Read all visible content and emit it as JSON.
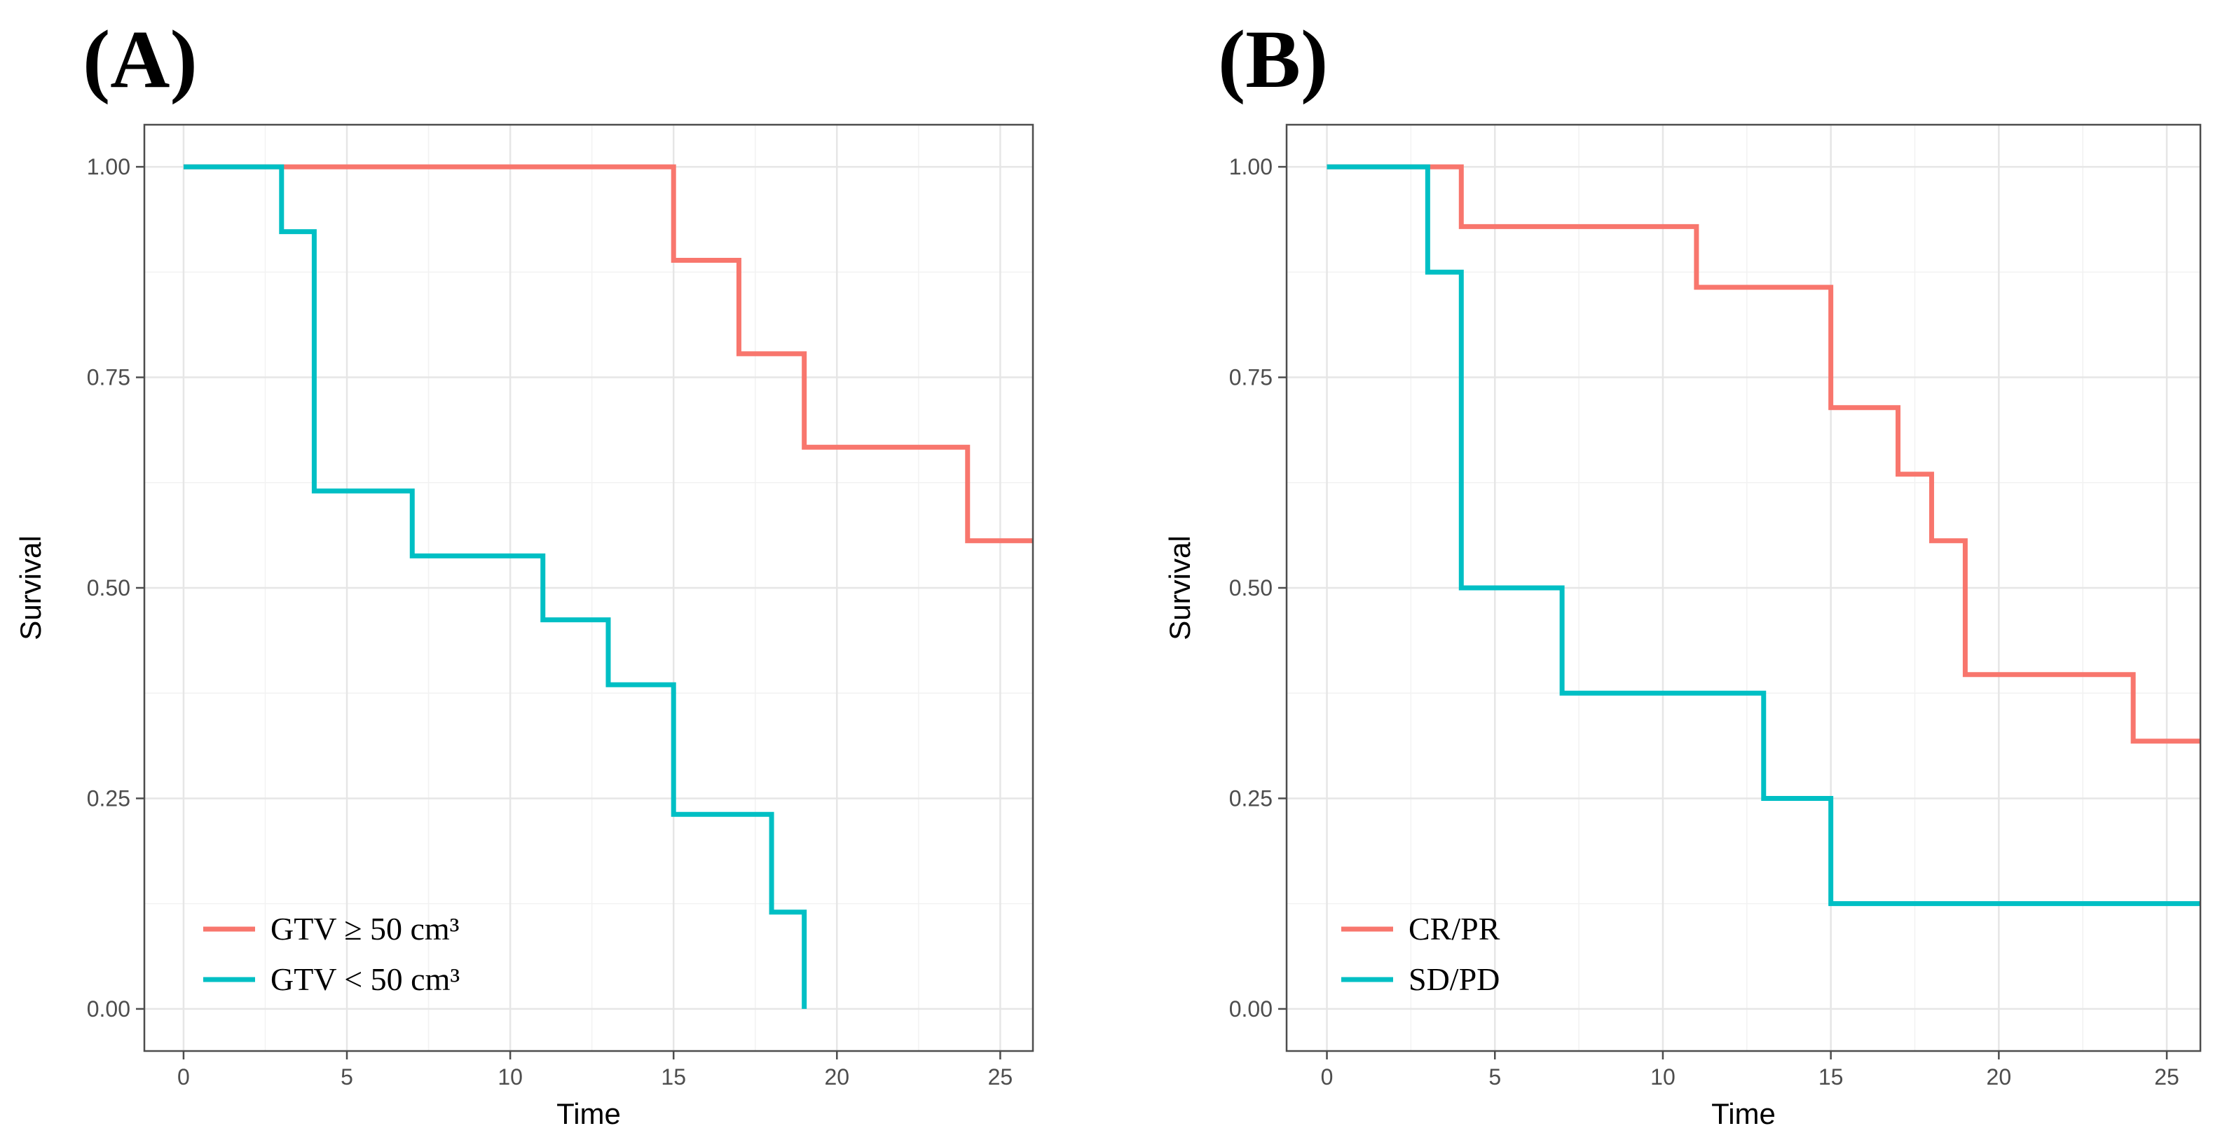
{
  "chart_data": [
    {
      "type": "line",
      "subtype": "kaplan-meier",
      "panel_label": "(A)",
      "xlabel": "Time",
      "ylabel": "Survival",
      "xlim": [
        -1.2,
        26
      ],
      "ylim": [
        -0.05,
        1.05
      ],
      "x_ticks": [
        0,
        5,
        10,
        15,
        20,
        25
      ],
      "x_tick_labels": [
        "0",
        "5",
        "10",
        "15",
        "20",
        "25"
      ],
      "y_ticks": [
        0,
        0.25,
        0.5,
        0.75,
        1
      ],
      "y_tick_labels": [
        "0.00",
        "0.25",
        "0.50",
        "0.75",
        "1.00"
      ],
      "grid": true,
      "legend_position": "bottom-left",
      "series": [
        {
          "name": "GTV ≥ 50 cm³",
          "color": "#f8766d",
          "steps": [
            [
              0,
              1.0
            ],
            [
              15,
              0.889
            ],
            [
              17,
              0.778
            ],
            [
              19,
              0.667
            ],
            [
              24,
              0.556
            ]
          ],
          "end_time": 26
        },
        {
          "name": "GTV < 50 cm³",
          "color": "#00bfc4",
          "steps": [
            [
              0,
              1.0
            ],
            [
              3,
              0.923
            ],
            [
              4,
              0.615
            ],
            [
              7,
              0.538
            ],
            [
              11,
              0.462
            ],
            [
              13,
              0.385
            ],
            [
              15,
              0.231
            ],
            [
              18,
              0.115
            ],
            [
              19,
              0.0
            ]
          ],
          "end_time": 19
        }
      ]
    },
    {
      "type": "line",
      "subtype": "kaplan-meier",
      "panel_label": "(B)",
      "xlabel": "Time",
      "ylabel": "Survival",
      "xlim": [
        -1.2,
        26
      ],
      "ylim": [
        -0.05,
        1.05
      ],
      "x_ticks": [
        0,
        5,
        10,
        15,
        20,
        25
      ],
      "x_tick_labels": [
        "0",
        "5",
        "10",
        "15",
        "20",
        "25"
      ],
      "y_ticks": [
        0,
        0.25,
        0.5,
        0.75,
        1
      ],
      "y_tick_labels": [
        "0.00",
        "0.25",
        "0.50",
        "0.75",
        "1.00"
      ],
      "grid": true,
      "legend_position": "bottom-left",
      "series": [
        {
          "name": "CR/PR",
          "color": "#f8766d",
          "steps": [
            [
              0,
              1.0
            ],
            [
              4,
              0.929
            ],
            [
              11,
              0.857
            ],
            [
              15,
              0.714
            ],
            [
              17,
              0.635
            ],
            [
              18,
              0.556
            ],
            [
              19,
              0.397
            ],
            [
              24,
              0.318
            ]
          ],
          "end_time": 26
        },
        {
          "name": "SD/PD",
          "color": "#00bfc4",
          "steps": [
            [
              0,
              1.0
            ],
            [
              3,
              0.875
            ],
            [
              4,
              0.5
            ],
            [
              7,
              0.375
            ],
            [
              13,
              0.25
            ],
            [
              15,
              0.125
            ]
          ],
          "end_time": 26
        }
      ]
    }
  ]
}
